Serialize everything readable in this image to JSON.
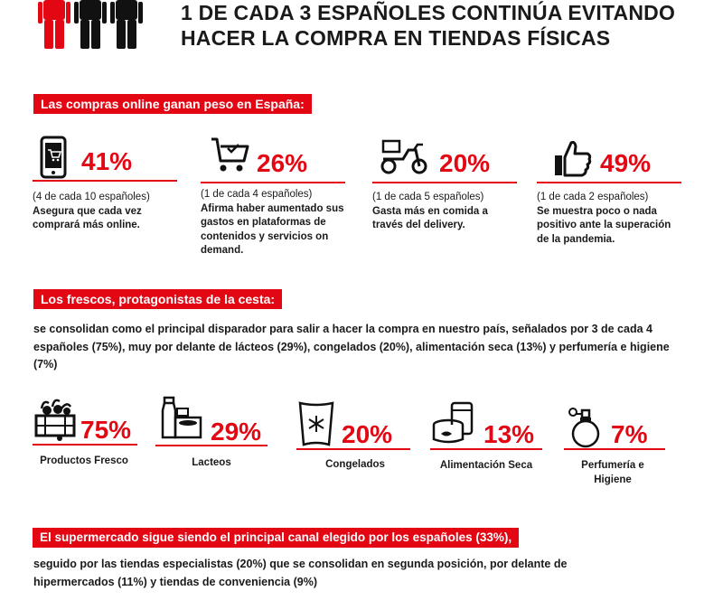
{
  "header": {
    "title_line1": "1 DE CADA 3 ESPAÑOLES CONTINÚA EVITANDO",
    "title_line2": "HACER LA COMPRA EN TIENDAS FÍSICAS"
  },
  "colors": {
    "accent": "#e30613",
    "text": "#1a1a1a",
    "figure_dark": "#111111"
  },
  "online": {
    "heading": "Las compras online ganan peso en España:",
    "stats": [
      {
        "icon": "smartphone-cart-icon",
        "value": "41%",
        "sub": "(4 de cada 10 españoles)",
        "text": "Asegura que cada vez comprará más online."
      },
      {
        "icon": "shopping-cart-icon",
        "value": "26%",
        "sub": "(1 de cada 4 españoles)",
        "text": "Afirma haber aumentado sus gastos en plataformas de contenidos y servicios on demand."
      },
      {
        "icon": "delivery-motorbike-icon",
        "value": "20%",
        "sub": "(1 de cada 5 españoles)",
        "text": "Gasta más en comida a través del delivery."
      },
      {
        "icon": "thumbs-up-icon",
        "value": "49%",
        "sub": "(1 de cada 2 españoles)",
        "text": "Se muestra poco o nada positivo ante la superación de la pandemia."
      }
    ]
  },
  "fresh": {
    "heading": "Los frescos, protagonistas de la cesta:",
    "paragraph": "se consolidan como el principal disparador para salir a hacer la compra en nuestro país, señalados por 3 de cada 4 españoles (75%), muy por delante de lácteos (29%), congelados (20%), alimentación seca (13%) y perfumería e higiene (7%)",
    "categories": [
      {
        "icon": "fresh-produce-crate-icon",
        "value": "75%",
        "label": "Productos Fresco"
      },
      {
        "icon": "dairy-products-icon",
        "value": "29%",
        "label": "Lacteos"
      },
      {
        "icon": "frozen-bag-icon",
        "value": "20%",
        "label": "Congelados"
      },
      {
        "icon": "canned-food-icon",
        "value": "13%",
        "label": "Alimentación Seca"
      },
      {
        "icon": "perfume-bottle-icon",
        "value": "7%",
        "label": "Perfumería e Higiene"
      }
    ]
  },
  "channel": {
    "heading": "El supermercado sigue siendo el principal canal elegido por los españoles (33%),",
    "paragraph": "seguido por las tiendas especialistas (20%) que se consolidan en segunda posición, por delante de hipermercados (11%) y tiendas de conveniencia (9%)"
  }
}
